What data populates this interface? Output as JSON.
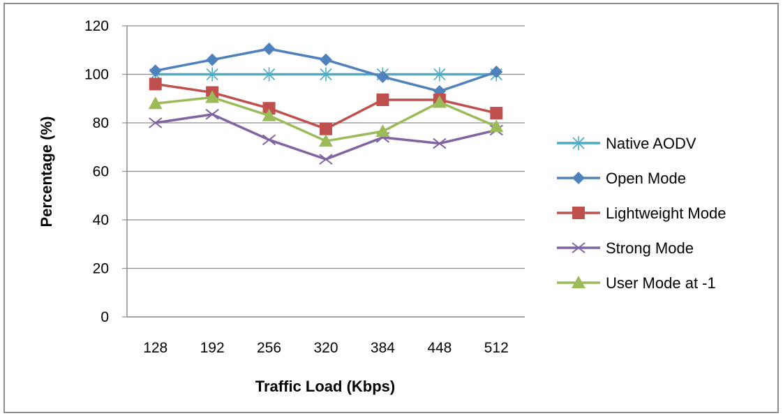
{
  "chart_data": {
    "type": "line",
    "title": "",
    "xlabel": "Traffic Load (Kbps)",
    "ylabel": "Percentage (%)",
    "categories": [
      "128",
      "192",
      "256",
      "320",
      "384",
      "448",
      "512"
    ],
    "yticks": [
      "0",
      "20",
      "40",
      "60",
      "80",
      "100",
      "120"
    ],
    "ylim": [
      0,
      120
    ],
    "grid": "horizontal",
    "legend_position": "right",
    "series": [
      {
        "name": "Native AODV",
        "values": [
          100,
          100,
          100,
          100,
          100,
          100,
          100
        ],
        "color": "#4bacc6",
        "marker": "asterisk"
      },
      {
        "name": "Open Mode",
        "values": [
          101.5,
          106,
          110.5,
          106,
          99,
          93,
          101
        ],
        "color": "#4f81bd",
        "marker": "diamond"
      },
      {
        "name": "Lightweight Mode",
        "values": [
          96,
          92.5,
          86,
          77.5,
          89.5,
          89.5,
          84
        ],
        "color": "#c0504d",
        "marker": "square"
      },
      {
        "name": "Strong Mode",
        "values": [
          80,
          83.5,
          73,
          65,
          74,
          71.5,
          77
        ],
        "color": "#8064a2",
        "marker": "x"
      },
      {
        "name": "User Mode at -1",
        "values": [
          88,
          90.5,
          83,
          72.5,
          76.5,
          88.5,
          78.5
        ],
        "color": "#9bbb59",
        "marker": "triangle"
      }
    ]
  }
}
